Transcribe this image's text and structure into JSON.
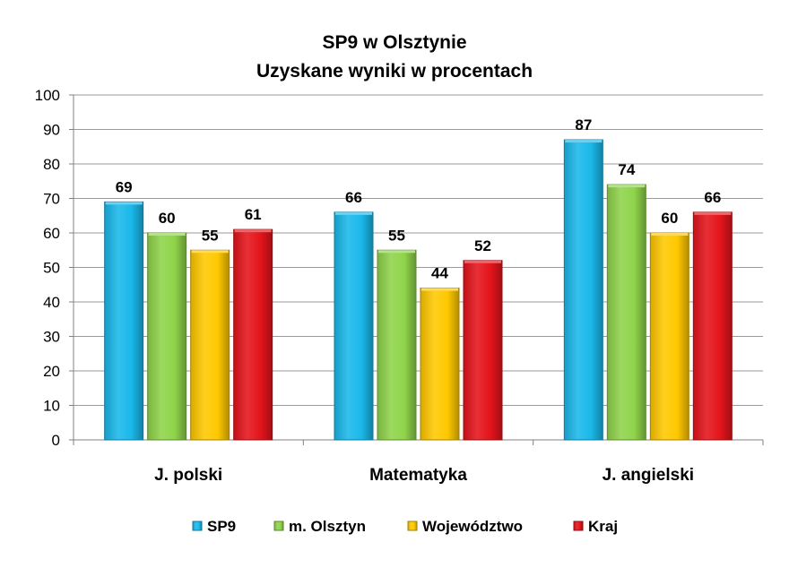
{
  "chart_data": {
    "type": "bar",
    "title": "SP9 w Olsztynie",
    "subtitle": "Uzyskane wyniki w procentach",
    "categories": [
      "J. polski",
      "Matematyka",
      "J. angielski"
    ],
    "series": [
      {
        "name": "SP9",
        "values": [
          69,
          66,
          87
        ],
        "color": "#1ab8ea"
      },
      {
        "name": "m. Olsztyn",
        "values": [
          60,
          55,
          74
        ],
        "color": "#8fd44a"
      },
      {
        "name": "Województwo",
        "values": [
          55,
          44,
          60
        ],
        "color": "#ffc800"
      },
      {
        "name": "Kraj",
        "values": [
          61,
          52,
          66
        ],
        "color": "#e4141b"
      }
    ],
    "ylim": [
      0,
      100
    ],
    "yticks": [
      "0",
      "10",
      "20",
      "30",
      "40",
      "50",
      "60",
      "70",
      "80",
      "90",
      "100"
    ],
    "grid": true,
    "legend": "bottom",
    "data_labels": true
  }
}
